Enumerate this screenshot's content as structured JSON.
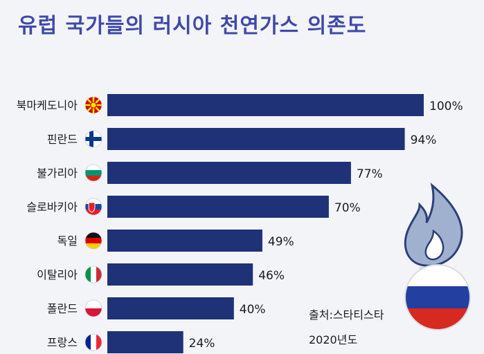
{
  "chart_data": {
    "type": "bar",
    "orientation": "horizontal",
    "title": "유럽 국가들의 러시아 천연가스 의존도",
    "categories": [
      "북마케도니아",
      "핀란드",
      "불가리아",
      "슬로바키아",
      "독일",
      "이탈리아",
      "폴란드",
      "프랑스"
    ],
    "values": [
      100,
      94,
      77,
      70,
      49,
      46,
      40,
      24
    ],
    "value_labels": [
      "100%",
      "94%",
      "77%",
      "70%",
      "49%",
      "46%",
      "40%",
      "24%"
    ],
    "flag_icons": [
      "north-macedonia-flag-icon",
      "finland-flag-icon",
      "bulgaria-flag-icon",
      "slovakia-flag-icon",
      "germany-flag-icon",
      "italy-flag-icon",
      "poland-flag-icon",
      "france-flag-icon"
    ],
    "xlim": [
      0,
      100
    ],
    "grid": false,
    "legend": "none",
    "bar_color": "#1f3278"
  },
  "source": {
    "line1": "출처:스타티스타",
    "line2": "2020년도"
  },
  "decorations": [
    "gas-flame-icon",
    "russia-flag-circle-icon"
  ],
  "colors": {
    "title": "#3f49a8",
    "bar": "#1f3278",
    "background": "#f3f4f8"
  }
}
